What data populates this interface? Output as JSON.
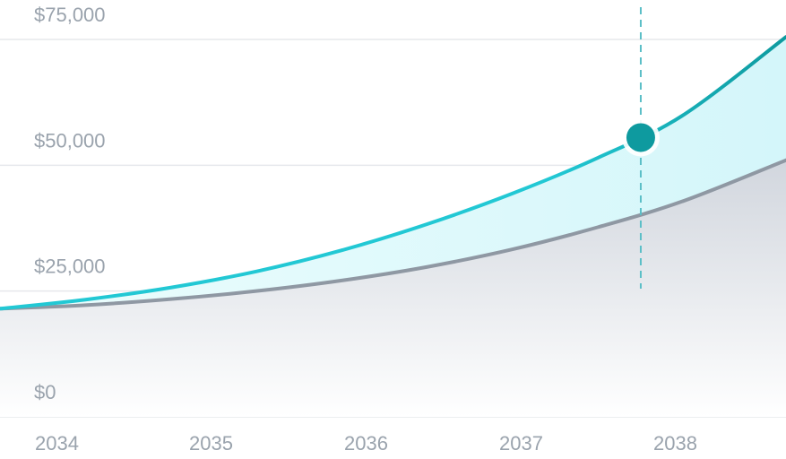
{
  "chart_data": {
    "type": "area",
    "x": [
      2034,
      2034.5,
      2035,
      2035.5,
      2036,
      2036.5,
      2037,
      2037.5,
      2038,
      2038.6
    ],
    "x_ticks": [
      "2034",
      "2035",
      "2036",
      "2037",
      "2038"
    ],
    "y_ticks": [
      "$75,000",
      "$50,000",
      "$25,000",
      "$0"
    ],
    "xlim": [
      2034,
      2038.6
    ],
    "ylim": [
      0,
      75000
    ],
    "grid": true,
    "legend": "none",
    "series": [
      {
        "values": [
          21500,
          23300,
          25700,
          28900,
          33100,
          38300,
          44400,
          51500,
          60000,
          75500
        ],
        "color": "#22c8d4"
      },
      {
        "values": [
          21500,
          22200,
          23400,
          25000,
          27100,
          29800,
          33300,
          37700,
          42900,
          51000
        ],
        "color": "#8f98a3"
      }
    ],
    "highlight": {
      "x": 2037.75,
      "y": 55500,
      "color": "#0e9a9f"
    },
    "colors": {
      "top_band": "#dff8fb",
      "bottom_fill": "#d8dce3",
      "grid": "#e6e8ec",
      "crosshair": "#5bbfc7"
    }
  }
}
